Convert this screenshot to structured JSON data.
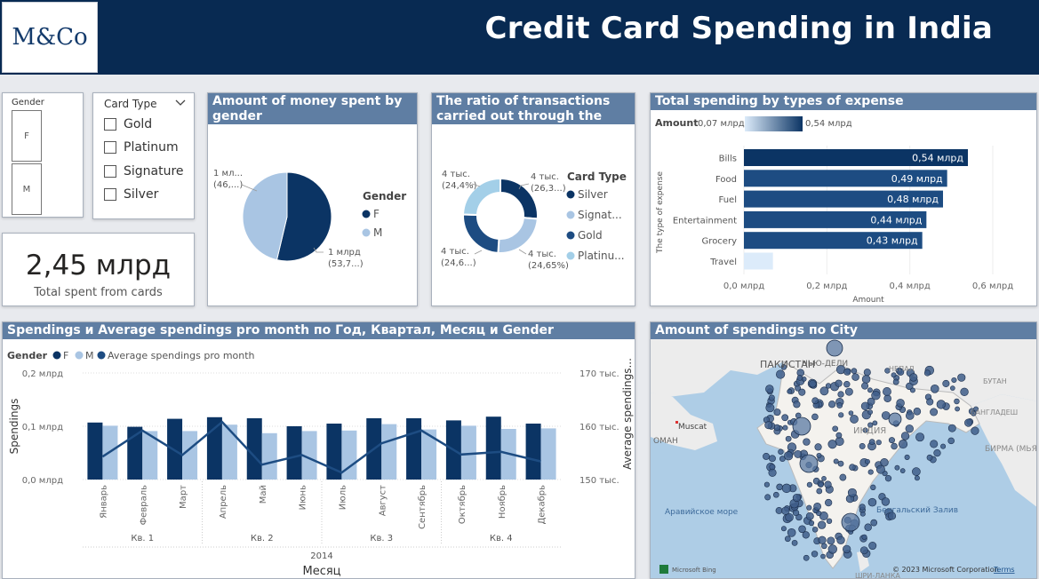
{
  "header": {
    "logo": "M&Co",
    "title": "Credit Card Spending in India"
  },
  "slicers": {
    "gender": {
      "label": "Gender",
      "options": [
        "F",
        "M"
      ]
    },
    "card_type": {
      "label": "Card Type",
      "options": [
        "Gold",
        "Platinum",
        "Signature",
        "Silver"
      ]
    }
  },
  "kpi": {
    "value": "2,45 млрд",
    "label": "Total spent from cards"
  },
  "colors": {
    "dark": "#0b3464",
    "mid": "#1d4c82",
    "light": "#a9c5e3",
    "pale": "#dcebfa",
    "header": "#082a52",
    "title_bar": "#5f7ea3"
  },
  "chart_data": [
    {
      "type": "pie",
      "title": "Amount of money spent by gender",
      "legend_title": "Gender",
      "categories": [
        "F",
        "M"
      ],
      "values": [
        53.7,
        46.3
      ],
      "data_labels": [
        [
          "1 млрд",
          "(53,7...)"
        ],
        [
          "1 мл...",
          "(46,...)"
        ]
      ],
      "legend": [
        "F",
        "M"
      ]
    },
    {
      "type": "pie",
      "donut": true,
      "title": "The ratio of transactions carried out through the card",
      "legend_title": "Card Type",
      "categories": [
        "Silver",
        "Signature",
        "Gold",
        "Platinum"
      ],
      "values": [
        26.3,
        24.65,
        24.6,
        24.4
      ],
      "data_labels": [
        [
          "4 тыс.",
          "(26,3...)"
        ],
        [
          "4 тыс.",
          "(24,65%)"
        ],
        [
          "4 тыс.",
          "(24,6...)"
        ],
        [
          "4 тыс.",
          "(24,4%)"
        ]
      ],
      "legend": [
        "Silver",
        "Signat...",
        "Gold",
        "Platinu..."
      ]
    },
    {
      "type": "bar",
      "orientation": "horizontal",
      "title": "Total spending by types of expense",
      "gradient_legend": {
        "label": "Amount",
        "min": "0,07 млрд",
        "max": "0,54 млрд"
      },
      "categories": [
        "Bills",
        "Food",
        "Fuel",
        "Entertainment",
        "Grocery",
        "Travel"
      ],
      "values": [
        0.54,
        0.49,
        0.48,
        0.44,
        0.43,
        0.07
      ],
      "data_labels": [
        "0,54 млрд",
        "0,49 млрд",
        "0,48 млрд",
        "0,44 млрд",
        "0,43 млрд",
        ""
      ],
      "xlabel": "Amount",
      "ylabel": "The type of expense",
      "xlim": [
        0,
        0.6
      ],
      "xticks": [
        "0,0 млрд",
        "0,2 млрд",
        "0,4 млрд",
        "0,6 млрд"
      ]
    },
    {
      "type": "bar",
      "combo": true,
      "title": "Spendings и Average spendings pro month по Год, Квартал, Месяц и Gender",
      "legend_title": "Gender",
      "legend": [
        "F",
        "M",
        "Average spendings pro month"
      ],
      "categories": [
        "Январь",
        "Февраль",
        "Март",
        "Апрель",
        "Май",
        "Июнь",
        "Июль",
        "Август",
        "Сентябрь",
        "Октябрь",
        "Ноябрь",
        "Декабрь"
      ],
      "quarters": [
        "Кв. 1",
        "Кв. 2",
        "Кв. 3",
        "Кв. 4"
      ],
      "year": "2014",
      "series": [
        {
          "name": "F",
          "values": [
            0.107,
            0.099,
            0.114,
            0.117,
            0.115,
            0.1,
            0.105,
            0.115,
            0.115,
            0.111,
            0.118,
            0.105
          ]
        },
        {
          "name": "M",
          "values": [
            0.101,
            0.091,
            0.091,
            0.103,
            0.087,
            0.091,
            0.092,
            0.104,
            0.094,
            0.101,
            0.095,
            0.096
          ]
        },
        {
          "name": "Average spendings pro month",
          "values": [
            154.3,
            159.2,
            154.6,
            160.8,
            152.8,
            154.6,
            151.3,
            156.8,
            159.2,
            154.7,
            155.2,
            153.4
          ]
        }
      ],
      "ylabel": "Spendings",
      "y2label": "Average spendings...",
      "xlabel": "Месяц",
      "ylim": [
        0,
        0.2
      ],
      "y2lim": [
        150,
        170
      ],
      "yticks": [
        "0,0 млрд",
        "0,1 млрд",
        "0,2 млрд"
      ],
      "y2ticks": [
        "150 тыс.",
        "160 тыс.",
        "170 тыс."
      ]
    }
  ],
  "map": {
    "title": "Amount of spendings по City",
    "labels": [
      "ПАКИСТАН",
      "НЬЮ-ДЕЛИ",
      "НЕПАЛ",
      "БУТАН",
      "БАНГЛАДЕШ",
      "Muscat",
      "ОМАН",
      "ИНДИЯ",
      "БИРМА (МЬЯ",
      "Аравийское море",
      "Бенгальский Залив",
      "ШРИ-ЛАНКА"
    ],
    "attribution": "© 2023 Microsoft Corporation",
    "terms": "Terms",
    "provider": "Microsoft Bing"
  }
}
